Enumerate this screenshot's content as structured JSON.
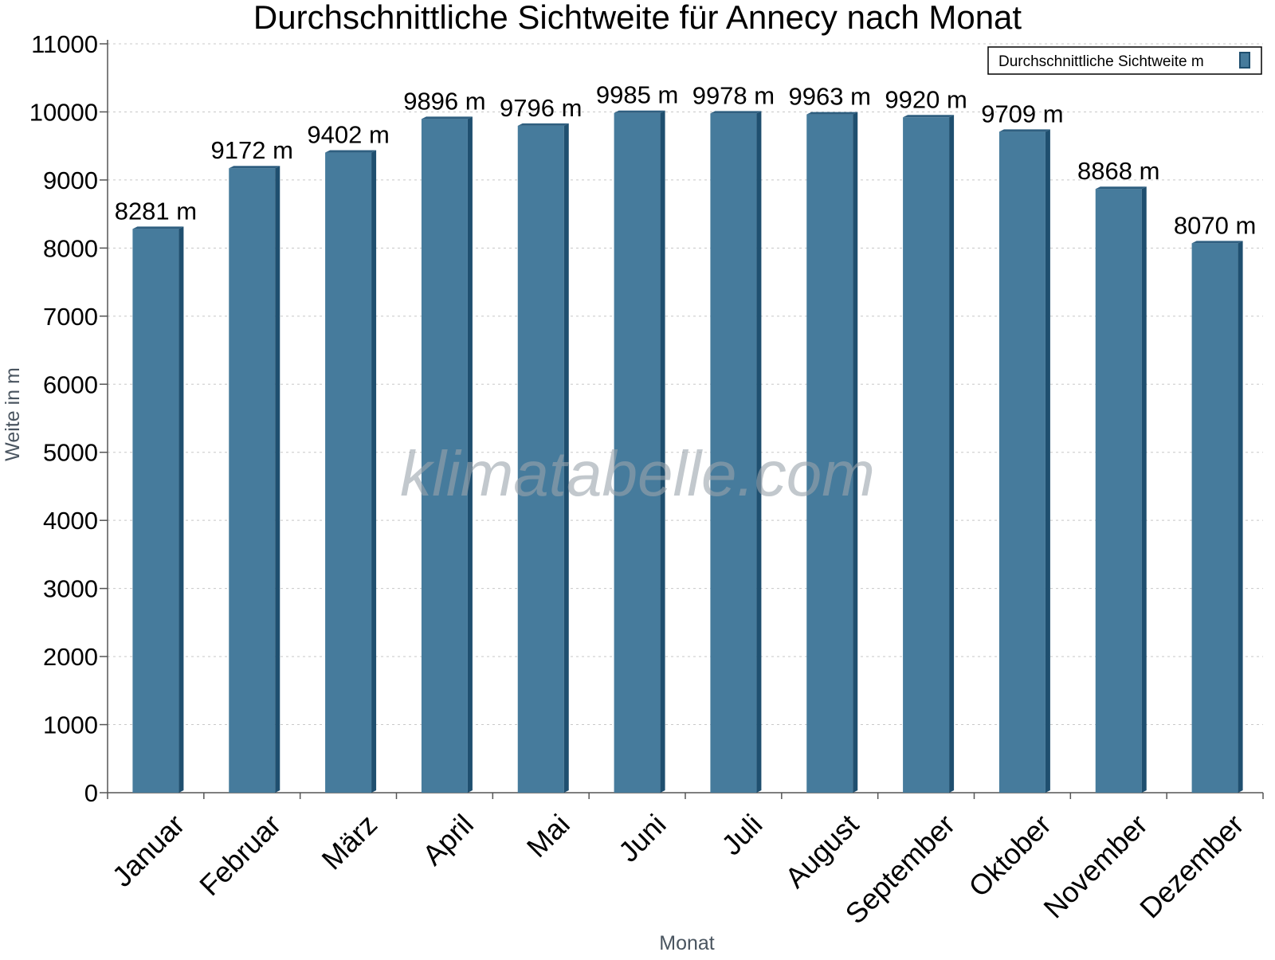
{
  "chart_data": {
    "type": "bar",
    "title": "Durchschnittliche Sichtweite für Annecy nach Monat",
    "xlabel": "Monat",
    "ylabel": "Weite in m",
    "categories": [
      "Januar",
      "Februar",
      "März",
      "April",
      "Mai",
      "Juni",
      "Juli",
      "August",
      "September",
      "Oktober",
      "November",
      "Dezember"
    ],
    "series": [
      {
        "name": "Durchschnittliche Sichtweite m",
        "values": [
          8281,
          9172,
          9402,
          9896,
          9796,
          9985,
          9978,
          9963,
          9920,
          9709,
          8868,
          8070
        ],
        "value_labels": [
          "8281 m",
          "9172 m",
          "9402 m",
          "9896 m",
          "9796 m",
          "9985 m",
          "9978 m",
          "9963 m",
          "9920 m",
          "9709 m",
          "8868 m",
          "8070 m"
        ]
      }
    ],
    "ylim": [
      0,
      11000
    ],
    "yticks": [
      "0",
      "1000",
      "2000",
      "3000",
      "4000",
      "5000",
      "6000",
      "7000",
      "8000",
      "9000",
      "10000",
      "11000"
    ],
    "grid": true,
    "legend": "top-right",
    "watermark": "klimatabelle.com",
    "colors": {
      "bar": "#467b9c",
      "bar_side": "#1f4f6f",
      "bar_top": "#2f5f80",
      "axis": "#555555",
      "grid": "#c8c8c8",
      "watermark": "#9aa3ab"
    }
  }
}
